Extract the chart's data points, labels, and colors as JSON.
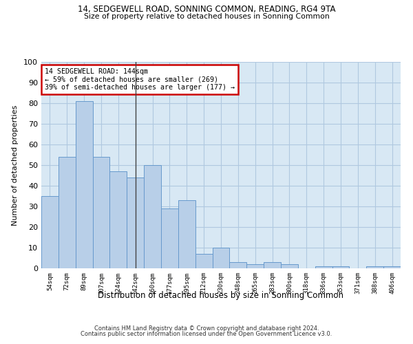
{
  "title1": "14, SEDGEWELL ROAD, SONNING COMMON, READING, RG4 9TA",
  "title2": "Size of property relative to detached houses in Sonning Common",
  "xlabel": "Distribution of detached houses by size in Sonning Common",
  "ylabel": "Number of detached properties",
  "categories": [
    "54sqm",
    "72sqm",
    "89sqm",
    "107sqm",
    "124sqm",
    "142sqm",
    "160sqm",
    "177sqm",
    "195sqm",
    "212sqm",
    "230sqm",
    "248sqm",
    "265sqm",
    "283sqm",
    "300sqm",
    "318sqm",
    "336sqm",
    "353sqm",
    "371sqm",
    "388sqm",
    "406sqm"
  ],
  "values": [
    35,
    54,
    81,
    54,
    47,
    44,
    50,
    29,
    33,
    7,
    10,
    3,
    2,
    3,
    2,
    0,
    1,
    1,
    0,
    1,
    1
  ],
  "bar_color": "#b8cfe8",
  "bar_edge_color": "#6699cc",
  "highlight_index": 5,
  "highlight_line_color": "#444444",
  "annotation_text": "14 SEDGEWELL ROAD: 144sqm\n← 59% of detached houses are smaller (269)\n39% of semi-detached houses are larger (177) →",
  "annotation_box_color": "#ffffff",
  "annotation_box_edge_color": "#cc0000",
  "ylim": [
    0,
    100
  ],
  "yticks": [
    0,
    10,
    20,
    30,
    40,
    50,
    60,
    70,
    80,
    90,
    100
  ],
  "grid_color": "#b0c8e0",
  "background_color": "#d8e8f4",
  "footer1": "Contains HM Land Registry data © Crown copyright and database right 2024.",
  "footer2": "Contains public sector information licensed under the Open Government Licence v3.0."
}
